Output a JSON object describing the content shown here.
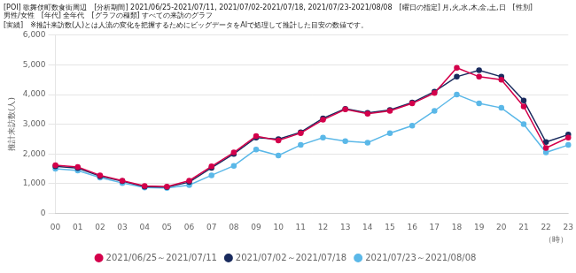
{
  "chart_data": {
    "type": "line",
    "title": "[POI] 歌舞伎町数食街周辺　[分析期間] 2021/06/25-2021/07/11, 2021/07/02-2021/07/18, 2021/07/23-2021/08/08　[曜日の指定] 月,火,水,木,金,土,日　[性別] 男性/女性　[年代] 全年代　[グラフの種類] すべての来訪のグラフ",
    "subtitle": "[実績]　※推計来訪数(人)とは人流の変化を把握するためにビッグデータをAIで処理して推計した目安の数値です。",
    "ylabel": "推計来訪数(人)",
    "xlabel": "（時）",
    "categories": [
      "00",
      "01",
      "02",
      "03",
      "04",
      "05",
      "06",
      "07",
      "08",
      "09",
      "10",
      "11",
      "12",
      "13",
      "14",
      "15",
      "16",
      "17",
      "18",
      "19",
      "20",
      "21",
      "22",
      "23"
    ],
    "series": [
      {
        "name": "2021/06/25～2021/07/11",
        "color": "#d4004b",
        "marker": "circle",
        "values": [
          1620,
          1560,
          1280,
          1100,
          920,
          900,
          1100,
          1580,
          2050,
          2600,
          2450,
          2700,
          3150,
          3500,
          3350,
          3450,
          3700,
          4050,
          4900,
          4600,
          4500,
          3600,
          2200,
          2550
        ]
      },
      {
        "name": "2021/07/02～2021/07/18",
        "color": "#1a2b5e",
        "marker": "circle",
        "values": [
          1580,
          1520,
          1250,
          1080,
          900,
          880,
          1050,
          1530,
          2000,
          2550,
          2500,
          2730,
          3200,
          3520,
          3380,
          3480,
          3730,
          4100,
          4600,
          4820,
          4600,
          3800,
          2400,
          2650
        ]
      },
      {
        "name": "2021/07/23～2021/08/08",
        "color": "#5bb8e8",
        "marker": "circle",
        "values": [
          1500,
          1440,
          1200,
          1020,
          870,
          850,
          950,
          1280,
          1600,
          2150,
          1950,
          2300,
          2550,
          2430,
          2380,
          2700,
          2950,
          3450,
          4000,
          3700,
          3550,
          3000,
          2050,
          2300
        ]
      }
    ],
    "ylim": [
      0,
      6000
    ],
    "yticks": [
      0,
      {
        "value": 1000,
        "label": "1,000"
      },
      {
        "value": 2000,
        "label": "2,000"
      },
      {
        "value": 3000,
        "label": "3,000"
      },
      {
        "value": 4000,
        "label": "4,000"
      },
      {
        "value": 5000,
        "label": "5,000"
      },
      {
        "value": 6000,
        "label": "6,000"
      }
    ],
    "grid": "y",
    "legend": "bottom"
  }
}
